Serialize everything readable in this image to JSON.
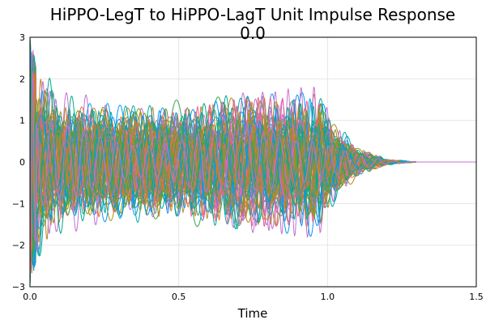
{
  "chart_data": {
    "type": "line",
    "title": "HiPPO-LegT to HiPPO-LagT Unit Impulse Response",
    "subtitle": "0.0",
    "xlabel": "Time",
    "ylabel": "",
    "xlim": [
      0.0,
      1.5
    ],
    "ylim": [
      -3,
      3
    ],
    "x_ticks": [
      0.0,
      0.5,
      1.0,
      1.5
    ],
    "x_tick_labels": [
      "0.0",
      "0.5",
      "1.0",
      "1.5"
    ],
    "y_ticks": [
      -3,
      -2,
      -1,
      0,
      1,
      2,
      3
    ],
    "y_tick_labels": [
      "−3",
      "−2",
      "−1",
      "0",
      "1",
      "2",
      "3"
    ],
    "grid": true,
    "legend": "none",
    "n_series": 64,
    "envelope": {
      "description": "oscillating impulse responses decaying from ±3 at t=0, growing toward ±2 near t=0.97, then decaying to 0 by t≈1.3",
      "time": [
        0.0,
        0.02,
        0.1,
        0.3,
        0.6,
        0.9,
        0.97,
        1.02,
        1.1,
        1.2,
        1.3,
        1.5
      ],
      "amplitude": [
        3.0,
        2.5,
        1.8,
        1.5,
        1.6,
        1.9,
        2.0,
        1.1,
        0.4,
        0.08,
        0.0,
        0.0
      ]
    },
    "palette": [
      "#009af9",
      "#e26f46",
      "#3da44d",
      "#c271d2",
      "#ac8e18",
      "#00a9ad",
      "#ed5e93",
      "#c68225",
      "#00a98d",
      "#8e971d"
    ]
  }
}
